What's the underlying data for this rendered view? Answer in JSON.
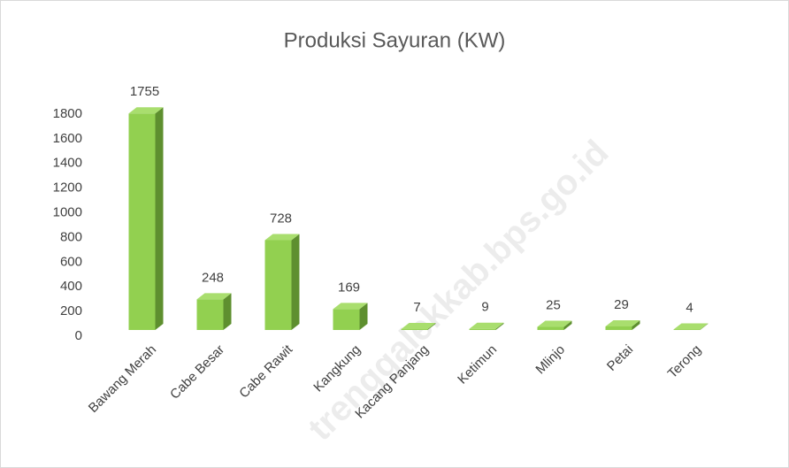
{
  "chart_data": {
    "type": "bar",
    "title": "Produksi Sayuran (KW)",
    "categories": [
      "Bawang Merah",
      "Cabe Besar",
      "Cabe Rawit",
      "Kangkung",
      "Kacang Panjang",
      "Ketimun",
      "Mlinjo",
      "Petai",
      "Terong"
    ],
    "values": [
      1755,
      248,
      728,
      169,
      7,
      9,
      25,
      29,
      4
    ],
    "color": "#92d050",
    "ylim": [
      0,
      1800
    ],
    "yticks": [
      0,
      200,
      400,
      600,
      800,
      1000,
      1200,
      1400,
      1600,
      1800
    ],
    "grid": false,
    "data_labels": true,
    "watermark": "trenggalekkab.bps.go.id"
  }
}
